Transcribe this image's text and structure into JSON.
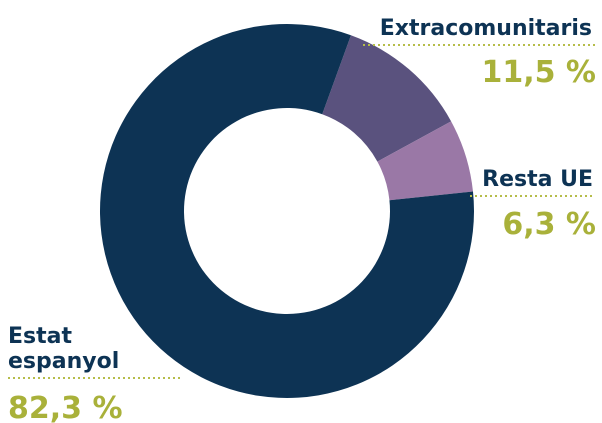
{
  "chart_data": {
    "type": "pie",
    "donut": true,
    "start_category": "Extracomunitaris",
    "direction": "clockwise",
    "slices": [
      {
        "name": "Extracomunitaris",
        "value": 11.5,
        "value_label": "11,5 %",
        "color": "#5a527e"
      },
      {
        "name": "Resta UE",
        "value": 6.3,
        "value_label": "6,3 %",
        "color": "#9a78a6"
      },
      {
        "name": "Estat espanyol",
        "name_lines": [
          "Estat",
          "espanyol"
        ],
        "value": 82.3,
        "value_label": "82,3 %",
        "color": "#0d3354"
      }
    ],
    "legend": "none",
    "grid": false
  }
}
